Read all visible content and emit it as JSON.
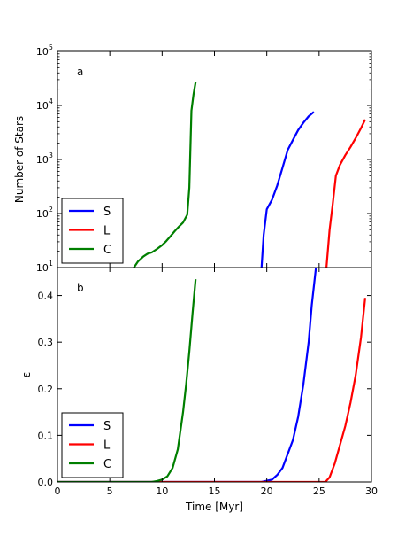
{
  "chart_data": [
    {
      "panel": "a",
      "type": "line",
      "xlabel": "",
      "ylabel": "Number of Stars",
      "yscale": "log",
      "xlim": [
        0,
        30
      ],
      "ylim": [
        10,
        100000
      ],
      "xticks": [
        0,
        5,
        10,
        15,
        20,
        25,
        30
      ],
      "yticks": [
        {
          "value": 10,
          "base": "10",
          "exp": "1"
        },
        {
          "value": 100,
          "base": "10",
          "exp": "2"
        },
        {
          "value": 1000,
          "base": "10",
          "exp": "3"
        },
        {
          "value": 10000,
          "base": "10",
          "exp": "4"
        },
        {
          "value": 100000,
          "base": "10",
          "exp": "5"
        }
      ],
      "legend": {
        "position": "lower-left"
      },
      "series": [
        {
          "name": "S",
          "color": "#0000ff",
          "x": [
            19.5,
            19.7,
            20.0,
            20.5,
            21.0,
            21.5,
            22.0,
            22.5,
            23.0,
            23.5,
            24.0,
            24.5
          ],
          "y": [
            10,
            40,
            120,
            180,
            330,
            700,
            1500,
            2300,
            3500,
            4800,
            6300,
            7600
          ]
        },
        {
          "name": "L",
          "color": "#ff0000",
          "x": [
            25.7,
            26.0,
            26.3,
            26.6,
            27.0,
            27.5,
            28.0,
            28.5,
            29.0,
            29.4
          ],
          "y": [
            10,
            50,
            150,
            500,
            800,
            1200,
            1700,
            2500,
            3800,
            5500
          ]
        },
        {
          "name": "C",
          "color": "#007f00",
          "x": [
            7.3,
            7.7,
            8.2,
            8.6,
            9.0,
            9.5,
            10.0,
            10.4,
            10.8,
            11.2,
            11.6,
            12.0,
            12.4,
            12.6,
            12.8,
            13.0,
            13.2
          ],
          "y": [
            10,
            13,
            16,
            18,
            19,
            22,
            26,
            31,
            38,
            47,
            57,
            68,
            95,
            300,
            8000,
            16000,
            27000
          ]
        }
      ]
    },
    {
      "panel": "b",
      "type": "line",
      "xlabel": "Time [Myr]",
      "ylabel": "ε",
      "xlim": [
        0,
        30
      ],
      "ylim": [
        0,
        0.46
      ],
      "xticks": [
        0,
        5,
        10,
        15,
        20,
        25,
        30
      ],
      "yticks": [
        0.0,
        0.1,
        0.2,
        0.3,
        0.4
      ],
      "yticklabels": [
        "0.0",
        "0.1",
        "0.2",
        "0.3",
        "0.4"
      ],
      "legend": {
        "position": "lower-left"
      },
      "series": [
        {
          "name": "S",
          "color": "#0000ff",
          "x": [
            0,
            19.5,
            20.5,
            21.0,
            21.5,
            22.0,
            22.5,
            23.0,
            23.5,
            24.0,
            24.3,
            24.6,
            24.7
          ],
          "y": [
            0,
            0,
            0.005,
            0.015,
            0.03,
            0.06,
            0.09,
            0.14,
            0.21,
            0.3,
            0.38,
            0.44,
            0.46
          ]
        },
        {
          "name": "L",
          "color": "#ff0000",
          "x": [
            0,
            25.6,
            26.0,
            26.5,
            27.0,
            27.5,
            28.0,
            28.5,
            29.0,
            29.4
          ],
          "y": [
            0,
            0,
            0.01,
            0.04,
            0.08,
            0.12,
            0.17,
            0.23,
            0.31,
            0.395
          ]
        },
        {
          "name": "C",
          "color": "#007f00",
          "x": [
            0,
            9.0,
            9.5,
            10.0,
            10.5,
            11.0,
            11.5,
            12.0,
            12.3,
            12.6,
            12.9,
            13.2
          ],
          "y": [
            0,
            0,
            0.002,
            0.005,
            0.012,
            0.03,
            0.07,
            0.15,
            0.21,
            0.28,
            0.36,
            0.435
          ]
        }
      ]
    }
  ]
}
